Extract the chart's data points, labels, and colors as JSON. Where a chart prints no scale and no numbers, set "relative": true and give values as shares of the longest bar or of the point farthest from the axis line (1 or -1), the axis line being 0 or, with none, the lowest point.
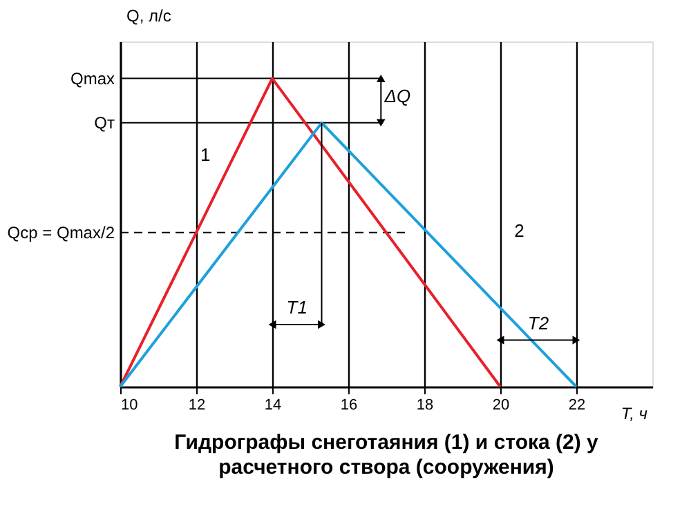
{
  "chart_data": {
    "type": "line",
    "title": "Гидрографы снеготаяния (1) и стока (2) у расчетного створа (сооружения)",
    "xlabel": "T, ч",
    "ylabel": "Q, л/с",
    "relative": true,
    "series": [
      {
        "x": [
          10,
          14,
          20
        ],
        "values": [
          0,
          1,
          0
        ],
        "color": "#e8202a"
      },
      {
        "x": [
          10,
          15.3,
          22
        ],
        "values": [
          0,
          0.856,
          0
        ],
        "color": "#1ea0dc"
      }
    ],
    "xlim": [
      10,
      24
    ],
    "xticks": [
      10,
      12,
      14,
      16,
      18,
      20,
      22
    ],
    "grid": "x",
    "line_style": "solid",
    "marker": "none",
    "ref_lines": [
      {
        "axis": "y",
        "value": 1,
        "label": "Qmax",
        "color": "#000000",
        "line_style": "solid"
      },
      {
        "axis": "y",
        "value": 0.856,
        "label": "Qт",
        "color": "#000000",
        "line_style": "solid"
      },
      {
        "axis": "y",
        "value": 0.5,
        "label": "Qср = Qmax/2",
        "color": "#000000",
        "line_style": "dashed"
      }
    ],
    "annotations": [
      "1",
      "2",
      "ΔQ",
      "T1",
      "T2"
    ]
  }
}
